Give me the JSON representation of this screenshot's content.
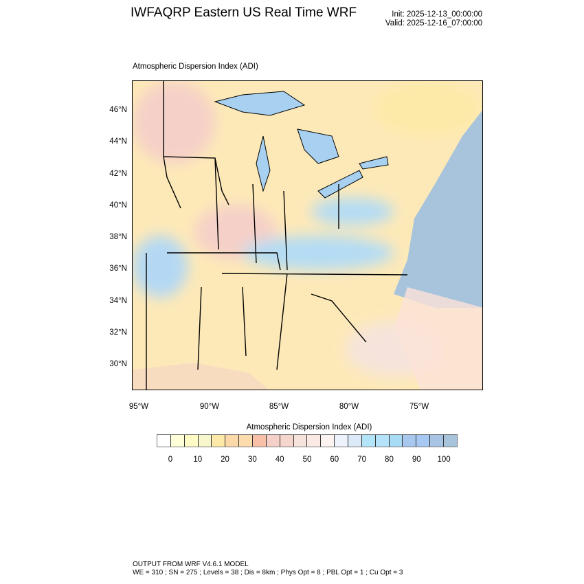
{
  "header": {
    "title": "IWFAQRP Eastern US Real Time WRF",
    "init": "Init: 2025-12-13_00:00:00",
    "valid": "Valid: 2025-12-16_07:00:00"
  },
  "map": {
    "subtitle": "Atmospheric Dispersion Index   (ADI)",
    "lat_labels": [
      "46°N",
      "44°N",
      "42°N",
      "40°N",
      "38°N",
      "36°N",
      "34°N",
      "32°N",
      "30°N"
    ],
    "lon_labels": [
      "95°W",
      "90°W",
      "85°W",
      "80°W",
      "75°W"
    ],
    "colors": {
      "land_low": "#fde9a8",
      "land_mid": "#f5d0c8",
      "land_high": "#b4e4f8",
      "ocean": "#a8c4dc",
      "lakes": "#a8c8f0"
    }
  },
  "colorbar": {
    "title": "Atmospheric Dispersion Index  (ADI)",
    "labels": [
      "0",
      "10",
      "20",
      "30",
      "40",
      "50",
      "60",
      "70",
      "80",
      "90",
      "100"
    ],
    "colors": [
      "#ffffff",
      "#fefed8",
      "#fefcc4",
      "#f8f6cc",
      "#fdeaa8",
      "#fcd9a8",
      "#fcdcac",
      "#f9c0a8",
      "#f5d0c8",
      "#f5d6cc",
      "#f6e4dc",
      "#fbe9e3",
      "#fdf4f2",
      "#eef2fc",
      "#dce9f8",
      "#b4e4f8",
      "#b4e2f8",
      "#a8dcf6",
      "#a8c8f0",
      "#a8c8f4",
      "#a8c4e4",
      "#a8c4dc"
    ]
  },
  "footer": {
    "line1": "OUTPUT FROM WRF V4.6.1 MODEL",
    "line2": "WE = 310 ; SN = 275 ; Levels = 38 ; Dis = 8km ; Phys Opt = 8 ; PBL Opt = 1 ; Cu Opt = 3"
  }
}
